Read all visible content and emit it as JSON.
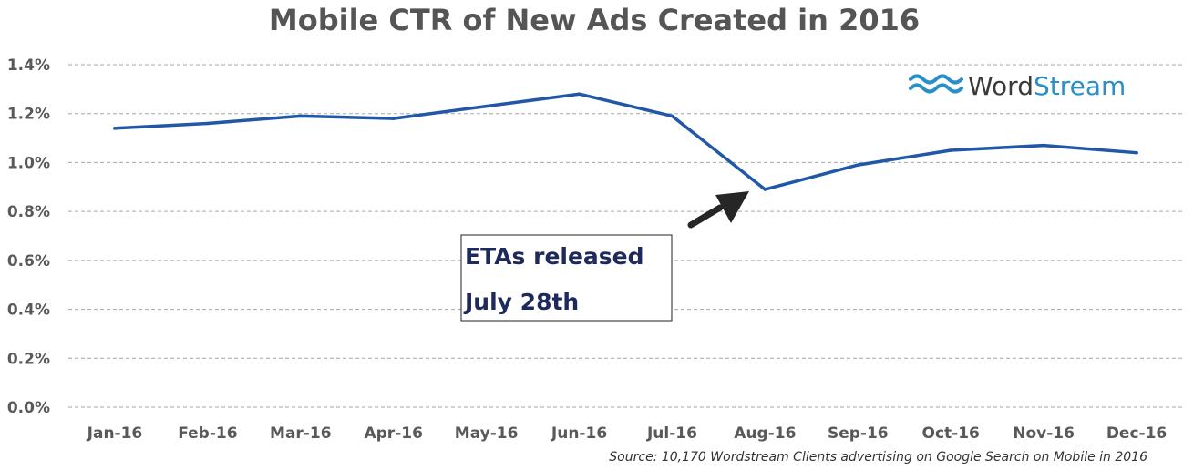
{
  "chart_data": {
    "type": "line",
    "title": "Mobile CTR of New Ads Created in 2016",
    "categories": [
      "Jan-16",
      "Feb-16",
      "Mar-16",
      "Apr-16",
      "May-16",
      "Jun-16",
      "Jul-16",
      "Aug-16",
      "Sep-16",
      "Oct-16",
      "Nov-16",
      "Dec-16"
    ],
    "series": [
      {
        "values": [
          1.14,
          1.16,
          1.19,
          1.18,
          1.23,
          1.28,
          1.19,
          0.89,
          0.99,
          1.05,
          1.07,
          1.04
        ],
        "color": "#2157a7"
      }
    ],
    "yticks": [
      "0.0%",
      "0.2%",
      "0.4%",
      "0.6%",
      "0.8%",
      "1.0%",
      "1.2%",
      "1.4%"
    ],
    "ylim": [
      0,
      1.4
    ],
    "grid": true,
    "annotation": {
      "lines": [
        "ETAs released",
        "July 28th"
      ],
      "points_to": "Aug-16"
    },
    "source": "Source: 10,170 Wordstream Clients advertising on Google Search on Mobile in 2016"
  },
  "logo": {
    "part1": "Word",
    "part2": "Stream",
    "icon": "wave-icon",
    "color_dark": "#3a3a3a",
    "color_accent": "#2a8fc7"
  }
}
